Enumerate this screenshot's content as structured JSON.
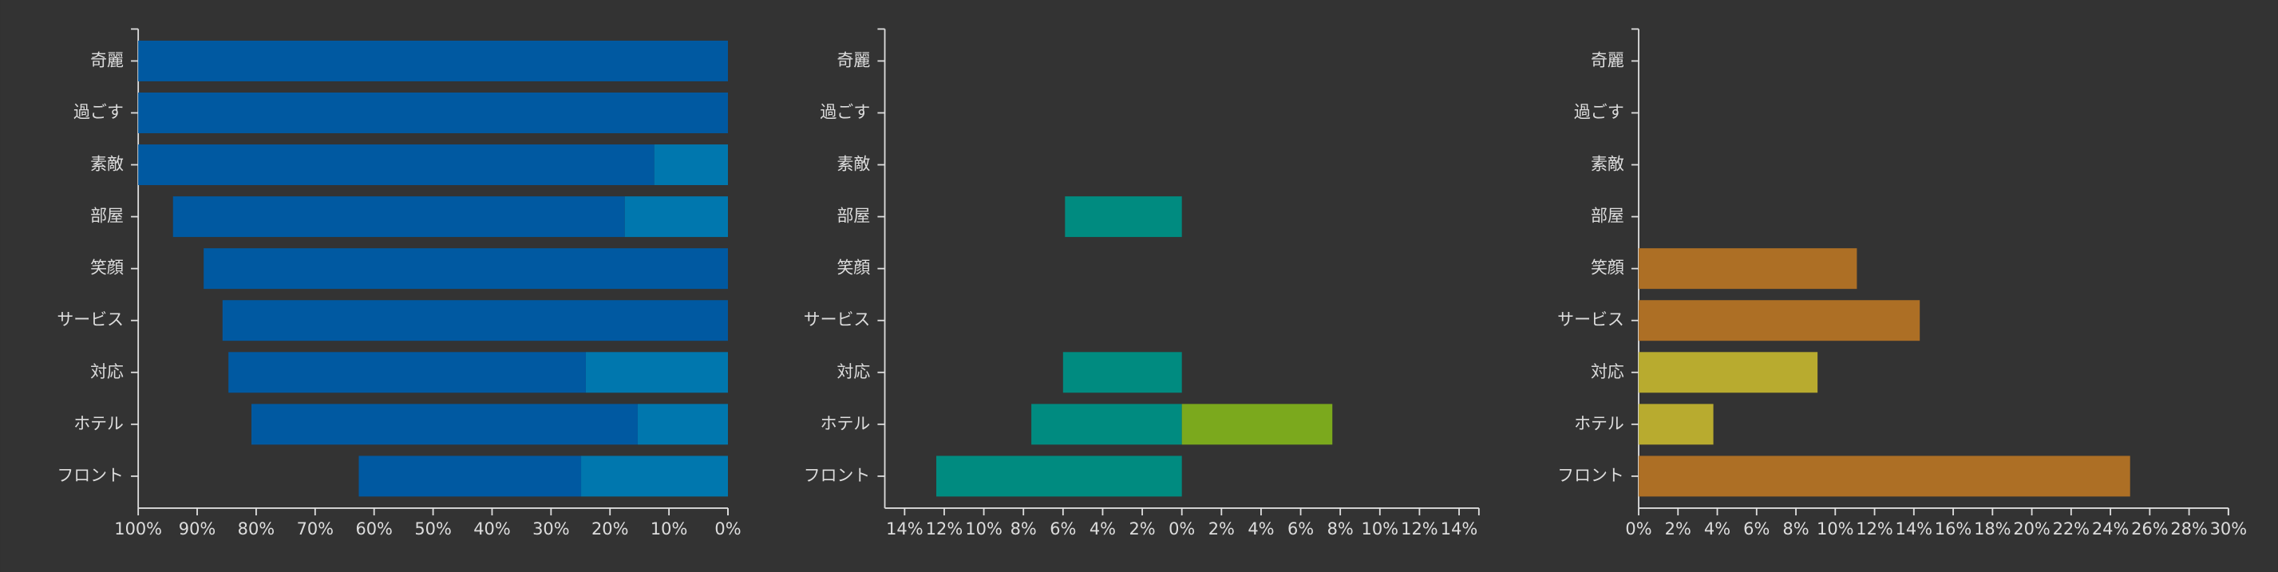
{
  "chart_data": [
    {
      "type": "bar",
      "orientation": "horizontal",
      "stacked": true,
      "categories": [
        "奇麗",
        "過ごす",
        "素敵",
        "部屋",
        "笑顔",
        "サービス",
        "対応",
        "ホテル",
        "フロント"
      ],
      "series": [
        {
          "color": "#0077ae",
          "values": [
            null,
            null,
            12.5,
            17.5,
            null,
            null,
            24.1,
            15.3,
            24.9
          ]
        },
        {
          "color": "#0059a1",
          "values": [
            100,
            100,
            87.5,
            76.6,
            88.9,
            85.7,
            60.6,
            65.5,
            37.7
          ]
        }
      ],
      "xlim": [
        100,
        0
      ],
      "xticks": [
        {
          "value": 100,
          "label": "100%"
        },
        {
          "value": 90,
          "label": "90%"
        },
        {
          "value": 80,
          "label": "80%"
        },
        {
          "value": 70,
          "label": "70%"
        },
        {
          "value": 60,
          "label": "60%"
        },
        {
          "value": 50,
          "label": "50%"
        },
        {
          "value": 40,
          "label": "40%"
        },
        {
          "value": 30,
          "label": "30%"
        },
        {
          "value": 20,
          "label": "20%"
        },
        {
          "value": 10,
          "label": "10%"
        },
        {
          "value": 0,
          "label": "0%"
        }
      ]
    },
    {
      "type": "bar",
      "orientation": "horizontal",
      "stacked": true,
      "categories": [
        "奇麗",
        "過ごす",
        "素敵",
        "部屋",
        "笑顔",
        "サービス",
        "対応",
        "ホテル",
        "フロント"
      ],
      "series": [
        {
          "color": "#008b80",
          "values": [
            null,
            null,
            null,
            -5.9,
            null,
            null,
            -6.0,
            -7.6,
            -12.4
          ]
        },
        {
          "color": "#7ba91d",
          "values": [
            null,
            null,
            null,
            null,
            null,
            null,
            null,
            7.6,
            null
          ]
        }
      ],
      "xlim": [
        -15,
        15
      ],
      "xticks": [
        {
          "value": -14,
          "label": "14%"
        },
        {
          "value": -12,
          "label": "12%"
        },
        {
          "value": -10,
          "label": "10%"
        },
        {
          "value": -8,
          "label": "8%"
        },
        {
          "value": -6,
          "label": "6%"
        },
        {
          "value": -4,
          "label": "4%"
        },
        {
          "value": -2,
          "label": "2%"
        },
        {
          "value": 0,
          "label": "0%"
        },
        {
          "value": 2,
          "label": "2%"
        },
        {
          "value": 4,
          "label": "4%"
        },
        {
          "value": 6,
          "label": "6%"
        },
        {
          "value": 8,
          "label": "8%"
        },
        {
          "value": 10,
          "label": "10%"
        },
        {
          "value": 12,
          "label": "12%"
        },
        {
          "value": 14,
          "label": "14%"
        }
      ]
    },
    {
      "type": "bar",
      "orientation": "horizontal",
      "stacked": true,
      "categories": [
        "奇麗",
        "過ごす",
        "素敵",
        "部屋",
        "笑顔",
        "サービス",
        "対応",
        "ホテル",
        "フロント"
      ],
      "series": [
        {
          "color": "#ad6f25",
          "values": [
            null,
            null,
            null,
            null,
            11.1,
            14.3,
            null,
            null,
            25.0
          ]
        },
        {
          "color": "#b8ab2f",
          "values": [
            null,
            null,
            null,
            null,
            null,
            null,
            9.1,
            3.8,
            null
          ]
        }
      ],
      "xlim": [
        0,
        30
      ],
      "xticks": [
        {
          "value": 0,
          "label": "0%"
        },
        {
          "value": 2,
          "label": "2%"
        },
        {
          "value": 4,
          "label": "4%"
        },
        {
          "value": 6,
          "label": "6%"
        },
        {
          "value": 8,
          "label": "8%"
        },
        {
          "value": 10,
          "label": "10%"
        },
        {
          "value": 12,
          "label": "12%"
        },
        {
          "value": 14,
          "label": "14%"
        },
        {
          "value": 16,
          "label": "16%"
        },
        {
          "value": 18,
          "label": "18%"
        },
        {
          "value": 20,
          "label": "20%"
        },
        {
          "value": 22,
          "label": "22%"
        },
        {
          "value": 24,
          "label": "24%"
        },
        {
          "value": 26,
          "label": "26%"
        },
        {
          "value": 28,
          "label": "28%"
        },
        {
          "value": 30,
          "label": "30%"
        }
      ]
    }
  ]
}
